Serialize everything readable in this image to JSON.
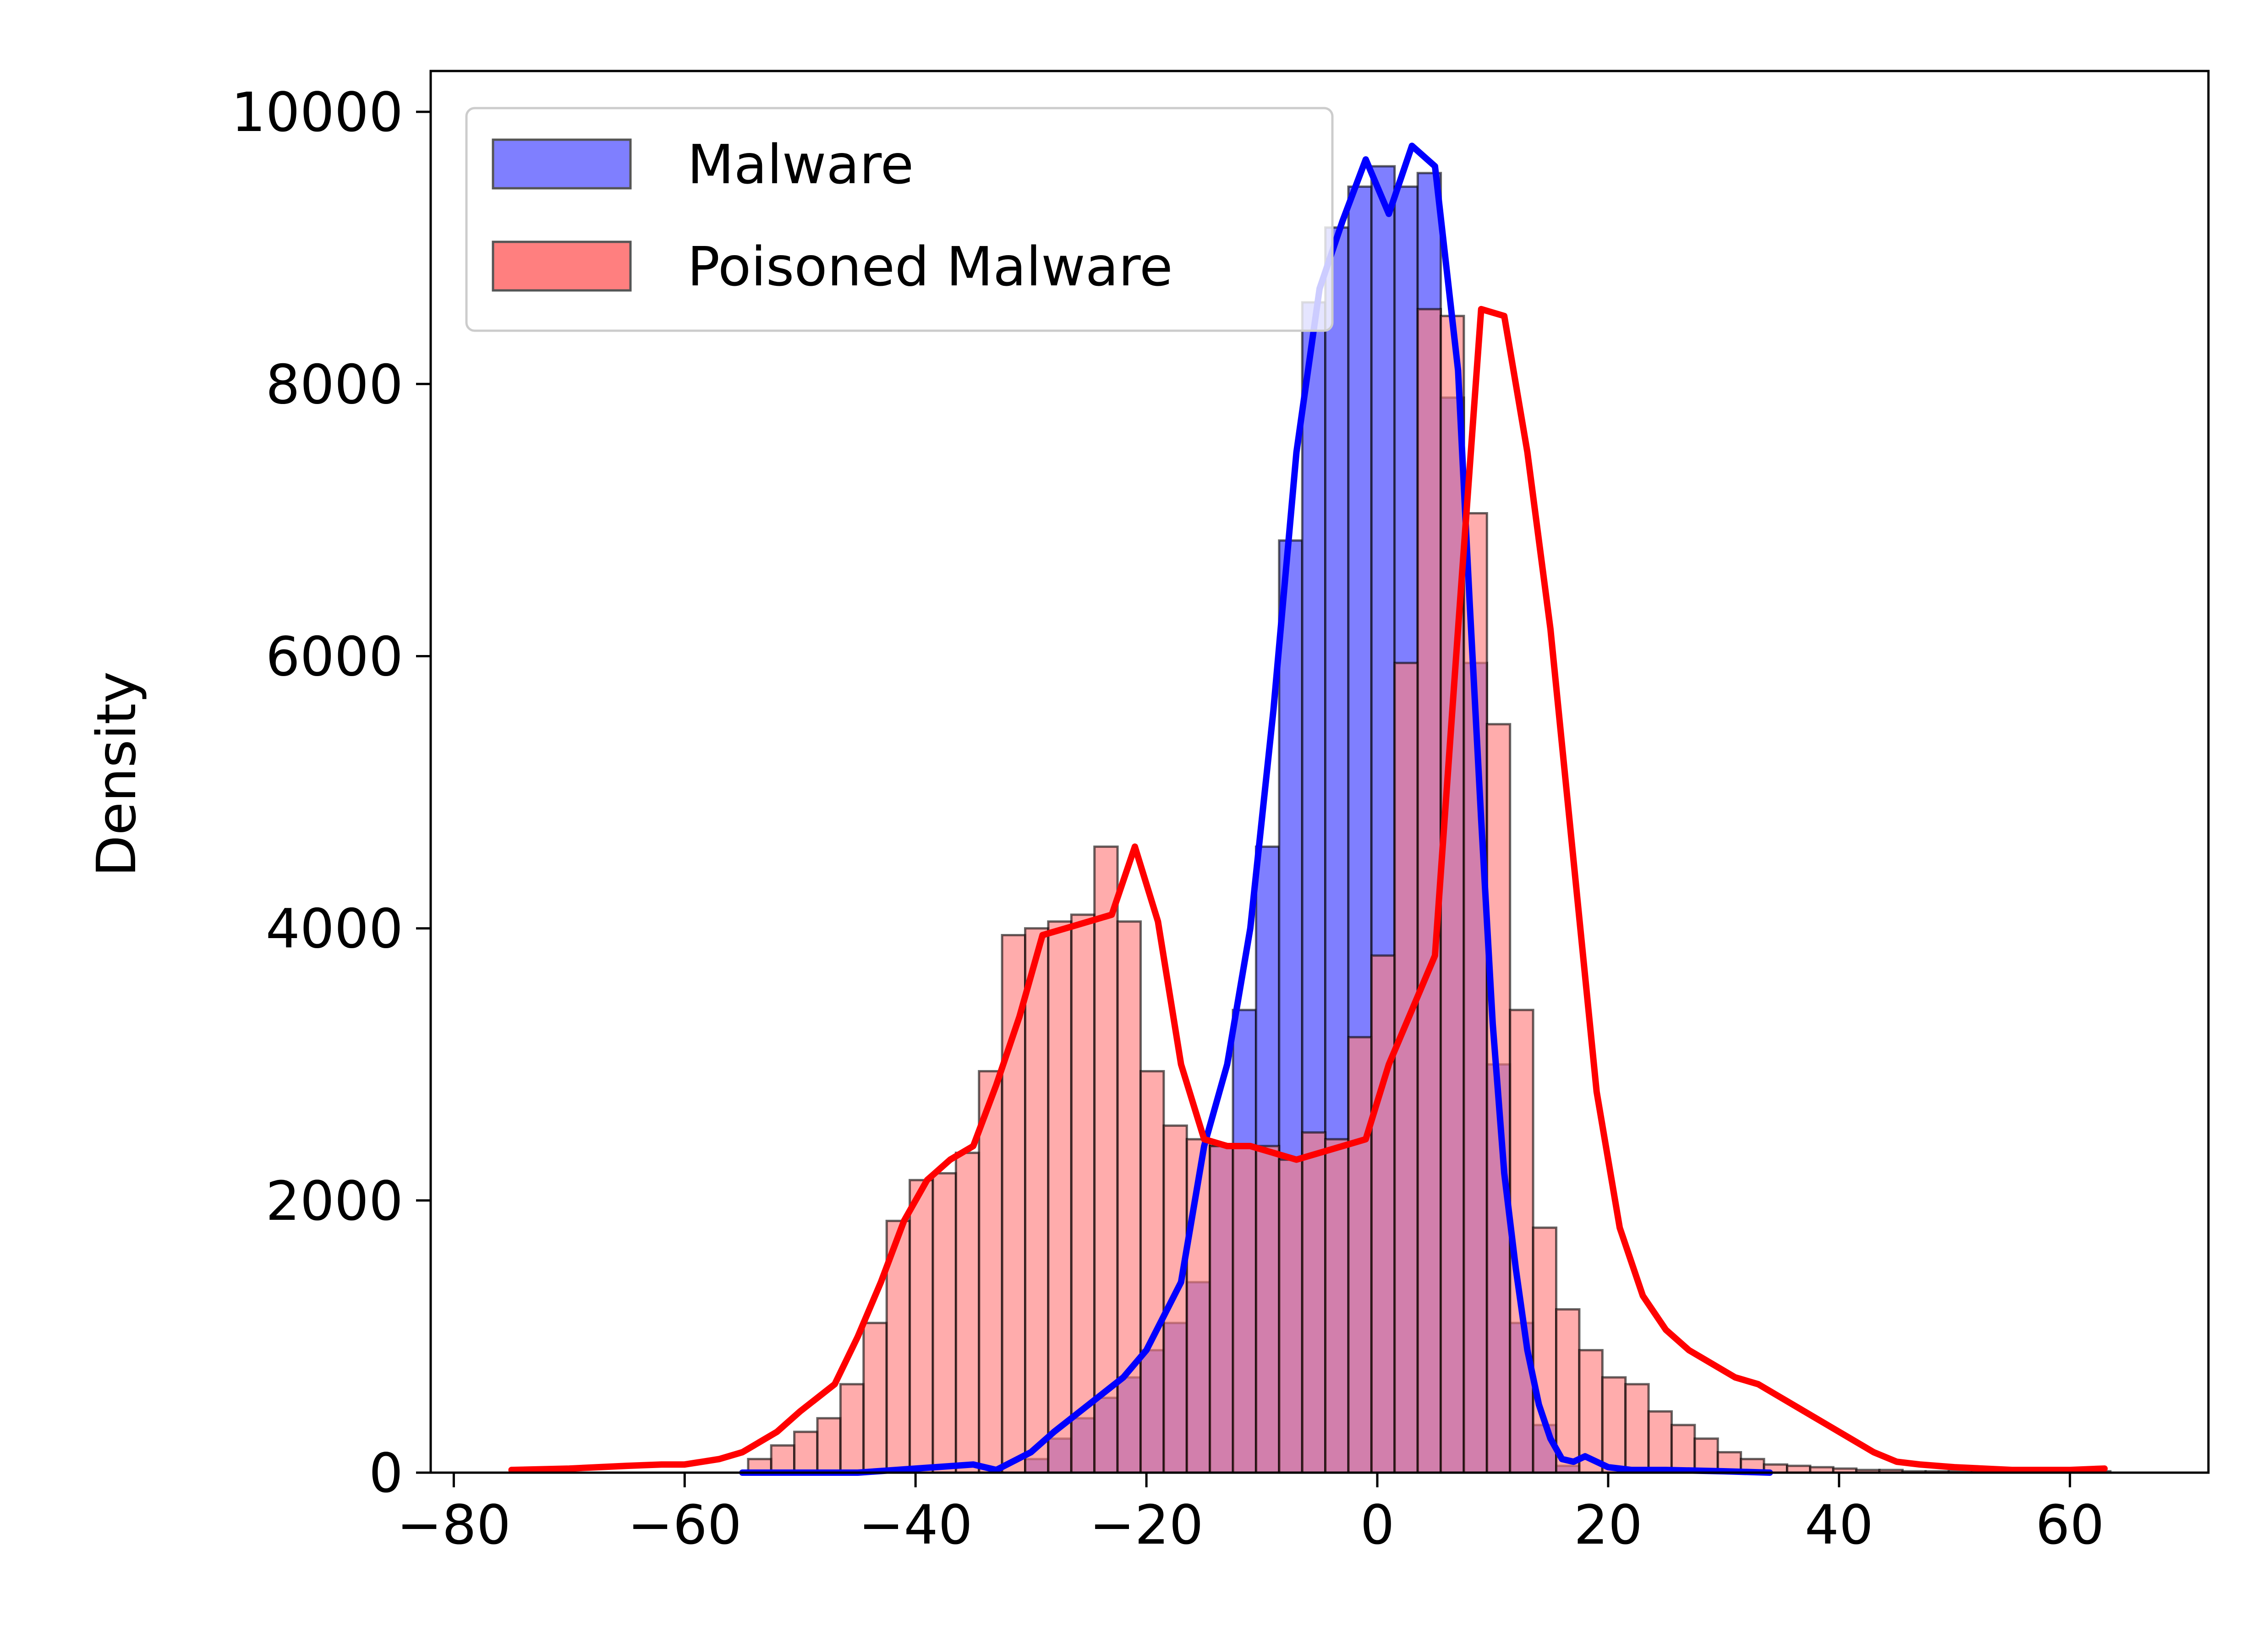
{
  "chart_data": {
    "type": "bar",
    "title": "",
    "xlabel": "",
    "ylabel": "Density",
    "xlim": [
      -82,
      72
    ],
    "ylim": [
      0,
      10300
    ],
    "xticks": [
      -80,
      -60,
      -40,
      -20,
      0,
      20,
      40,
      60
    ],
    "xtick_labels": [
      "−80",
      "−60",
      "−40",
      "−20",
      "0",
      "20",
      "40",
      "60"
    ],
    "yticks": [
      0,
      2000,
      4000,
      6000,
      8000,
      10000
    ],
    "ytick_labels": [
      "0",
      "2000",
      "4000",
      "6000",
      "8000",
      "10000"
    ],
    "grid": false,
    "legend_position": "upper-left",
    "series": [
      {
        "name": "Malware",
        "kind": "histogram",
        "color": "#0000ff",
        "fill_color": "#7f7fff",
        "bin_left": [
          -30.5,
          -28.5,
          -26.5,
          -24.5,
          -22.5,
          -20.5,
          -18.5,
          -16.5,
          -14.5,
          -12.5,
          -10.5,
          -8.5,
          -6.5,
          -4.5,
          -2.5,
          -0.5,
          1.5,
          3.5,
          5.5,
          7.5,
          9.5,
          11.5,
          13.5,
          15.5
        ],
        "bin_width": 2,
        "values": [
          100,
          250,
          400,
          550,
          700,
          900,
          1100,
          1400,
          2400,
          3400,
          4600,
          6850,
          8600,
          9150,
          9450,
          9600,
          9450,
          9550,
          7900,
          5950,
          3000,
          1100,
          350,
          50
        ],
        "kde_x": [
          -55,
          -45,
          -40,
          -35,
          -33,
          -30,
          -28,
          -25,
          -22,
          -20,
          -17,
          -15,
          -13,
          -11,
          -9,
          -7,
          -5,
          -3,
          -1,
          1,
          3,
          5,
          7,
          8,
          9,
          10,
          11,
          12,
          13,
          14,
          15,
          16,
          17,
          18,
          19,
          20,
          22,
          25,
          30,
          34
        ],
        "kde_y": [
          0,
          0,
          30,
          60,
          20,
          150,
          300,
          500,
          700,
          900,
          1400,
          2400,
          3000,
          4000,
          5600,
          7500,
          8700,
          9200,
          9650,
          9250,
          9750,
          9600,
          8100,
          6400,
          4800,
          3300,
          2200,
          1500,
          900,
          500,
          250,
          100,
          80,
          120,
          80,
          40,
          20,
          20,
          10,
          0
        ]
      },
      {
        "name": "Poisoned Malware",
        "kind": "histogram",
        "color": "#ff0000",
        "fill_color": "#ff7f7f",
        "bin_left": [
          -54.5,
          -52.5,
          -50.5,
          -48.5,
          -46.5,
          -44.5,
          -42.5,
          -40.5,
          -38.5,
          -36.5,
          -34.5,
          -32.5,
          -30.5,
          -28.5,
          -26.5,
          -24.5,
          -22.5,
          -20.5,
          -18.5,
          -16.5,
          -14.5,
          -12.5,
          -10.5,
          -8.5,
          -6.5,
          -4.5,
          -2.5,
          -0.5,
          1.5,
          3.5,
          5.5,
          7.5,
          9.5,
          11.5,
          13.5,
          15.5,
          17.5,
          19.5,
          21.5,
          23.5,
          25.5,
          27.5,
          29.5,
          31.5,
          33.5,
          35.5,
          37.5,
          39.5,
          41.5,
          43.5,
          45.5,
          47.5,
          49.5,
          51.5,
          53.5,
          55.5,
          57.5,
          59.5,
          61.5
        ],
        "bin_width": 2,
        "values": [
          100,
          200,
          300,
          400,
          650,
          1100,
          1850,
          2150,
          2200,
          2350,
          2950,
          3950,
          4000,
          4050,
          4100,
          4600,
          4050,
          2950,
          2550,
          2450,
          2400,
          2400,
          2400,
          2300,
          2500,
          2450,
          3200,
          3800,
          5950,
          8550,
          8500,
          7050,
          5500,
          3400,
          1800,
          1200,
          900,
          700,
          650,
          450,
          350,
          250,
          150,
          100,
          60,
          50,
          40,
          30,
          20,
          20,
          10,
          10,
          10,
          10,
          10,
          10,
          10,
          10,
          10
        ],
        "kde_x": [
          -75,
          -70,
          -65,
          -62,
          -60,
          -57,
          -55,
          -52,
          -50,
          -47,
          -45,
          -43,
          -41,
          -39,
          -37,
          -35,
          -33,
          -31,
          -29,
          -27,
          -25,
          -23,
          -21,
          -19,
          -17,
          -15,
          -13,
          -11,
          -9,
          -7,
          -5,
          -3,
          -1,
          1,
          3,
          5,
          7,
          9,
          11,
          13,
          15,
          17,
          19,
          21,
          23,
          25,
          27,
          29,
          31,
          33,
          35,
          37,
          39,
          41,
          43,
          45,
          47,
          50,
          55,
          60,
          63
        ],
        "kde_y": [
          20,
          30,
          50,
          60,
          60,
          100,
          150,
          300,
          450,
          650,
          1000,
          1400,
          1850,
          2150,
          2300,
          2400,
          2850,
          3350,
          3950,
          4000,
          4050,
          4100,
          4600,
          4050,
          3000,
          2450,
          2400,
          2400,
          2350,
          2300,
          2350,
          2400,
          2450,
          3000,
          3400,
          3800,
          6200,
          8550,
          8500,
          7500,
          6200,
          4500,
          2800,
          1800,
          1300,
          1050,
          900,
          800,
          700,
          650,
          550,
          450,
          350,
          250,
          150,
          80,
          60,
          40,
          20,
          20,
          30
        ]
      }
    ]
  }
}
